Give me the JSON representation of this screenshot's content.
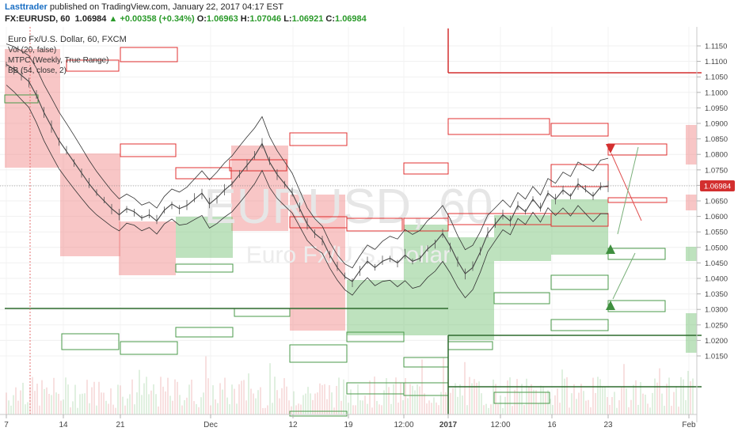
{
  "header": {
    "author": "Lasttrader",
    "published": "published on TradingView.com, January 22, 2017 04:17 EST",
    "symbol": "FX:EURUSD, 60",
    "last": "1.06984",
    "change_arrow": "▲",
    "change": "+0.00358 (+0.34%)",
    "o_label": "O:",
    "o_val": "1.06963",
    "h_label": "H:",
    "h_val": "1.07046",
    "l_label": "L:",
    "l_val": "1.06921",
    "c_label": "C:",
    "c_val": "1.06984"
  },
  "legend": {
    "title": "Euro Fx/U.S. Dollar, 60, FXCM",
    "vol": "Vol (20, false)",
    "mtpc": "MTPC (Weekly, True Range)",
    "bb": "BB (54, close, 2)"
  },
  "colors": {
    "up": "#2a9a2a",
    "down": "#d32f2f",
    "red_zone": "rgba(240,128,128,0.45)",
    "green_zone": "rgba(110,190,110,0.45)",
    "price_label": "#d32f2f"
  },
  "chart_data": {
    "type": "line",
    "title": "EURUSD, 60",
    "watermark_sub": "Euro Fx/U.S. Dollar",
    "x_ticks": [
      "7",
      "14",
      "21",
      "Dec",
      "12",
      "19",
      "12:00",
      "2017",
      "12:00",
      "16",
      "23",
      "Feb"
    ],
    "y_ticks": [
      "1.1150",
      "1.1100",
      "1.1050",
      "1.1000",
      "1.0950",
      "1.0900",
      "1.0850",
      "1.0800",
      "1.0750",
      "1.0700",
      "1.0650",
      "1.0600",
      "1.0550",
      "1.0500",
      "1.0450",
      "1.0400",
      "1.0350",
      "1.0300",
      "1.0250",
      "1.0200",
      "1.0150"
    ],
    "ylim": [
      1.0125,
      1.119
    ],
    "last_price": "1.06984",
    "series": [
      {
        "values": [
          1.109,
          1.1075,
          1.1055,
          1.1035,
          1.099,
          1.0935,
          1.089,
          1.0845,
          1.081,
          1.0775,
          1.074,
          1.0705,
          1.0675,
          1.065,
          1.0625,
          1.0605,
          1.0625,
          1.0615,
          1.0595,
          1.0605,
          1.0585,
          1.062,
          1.064,
          1.0625,
          1.0635,
          1.0655,
          1.0675,
          1.064,
          1.066,
          1.0685,
          1.0705,
          1.0735,
          1.0765,
          1.0795,
          1.0835,
          1.0775,
          1.0735,
          1.0705,
          1.0675,
          1.0625,
          1.0575,
          1.0545,
          1.0525,
          1.0475,
          1.0435,
          1.0405,
          1.039,
          1.0425,
          1.0455,
          1.0435,
          1.0455,
          1.0465,
          1.045,
          1.0475,
          1.0455,
          1.0465,
          1.0495,
          1.0515,
          1.0545,
          1.0505,
          1.0455,
          1.0415,
          1.0435,
          1.0485,
          1.0545,
          1.0575,
          1.0605,
          1.0585,
          1.0635,
          1.0615,
          1.0655,
          1.0625,
          1.0675,
          1.0655,
          1.0685,
          1.0665,
          1.0705,
          1.0685,
          1.0665,
          1.0695,
          1.0698
        ]
      }
    ]
  }
}
